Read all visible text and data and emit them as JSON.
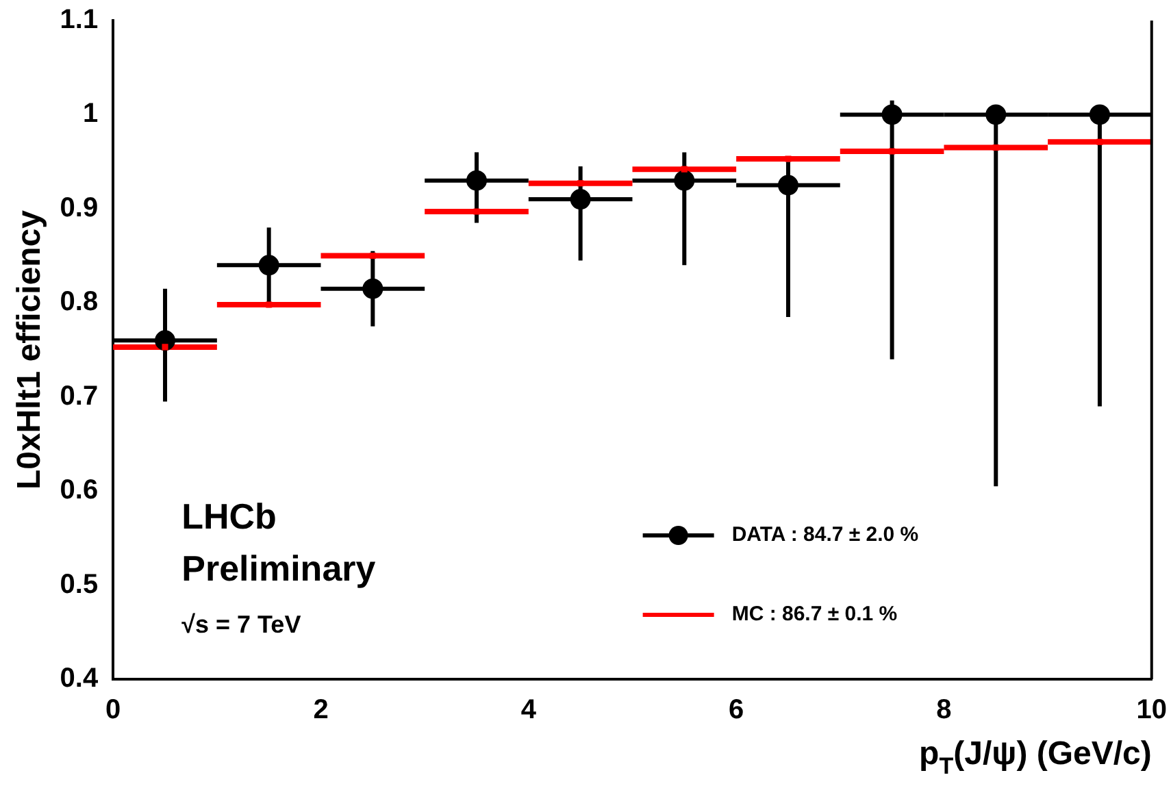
{
  "chart_data": {
    "type": "scatter",
    "xlabel": "p$_{T}$(J/ψ) (GeV/c)",
    "ylabel": "L0xHlt1 efficiency",
    "annotations": [
      "LHCb",
      "Preliminary",
      "√s = 7 TeV"
    ],
    "x": [
      0.5,
      1.5,
      2.5,
      3.5,
      4.5,
      5.5,
      6.5,
      7.5,
      8.5,
      9.5
    ],
    "xlim": [
      0,
      10
    ],
    "xticks": [
      0,
      2,
      4,
      6,
      8,
      10
    ],
    "ylim": [
      0.4,
      1.1
    ],
    "yticks": [
      0.4,
      0.5,
      0.6,
      0.7,
      0.8,
      0.9,
      1,
      1.1
    ],
    "grid": false,
    "legend": "bottom right",
    "series": [
      {
        "name": "DATA : 84.7 ± 2.0 %",
        "color": "#000000",
        "marker": "circle",
        "values": [
          0.76,
          0.84,
          0.815,
          0.93,
          0.91,
          0.93,
          0.925,
          1.0,
          1.0,
          1.0
        ],
        "errors": [
          [
            0.695,
            0.815
          ],
          [
            0.795,
            0.88
          ],
          [
            0.775,
            0.855
          ],
          [
            0.885,
            0.96
          ],
          [
            0.845,
            0.945
          ],
          [
            0.84,
            0.96
          ],
          [
            0.785,
            0.95
          ],
          [
            0.74,
            1.015
          ],
          [
            0.605,
            1.0
          ],
          [
            0.69,
            1.0
          ]
        ],
        "xerrors": [
          0.5,
          0.5,
          0.5,
          0.5,
          0.5,
          0.5,
          0.5,
          0.5,
          0.5,
          0.5
        ]
      },
      {
        "name": "MC : 86.7 ± 0.1 %",
        "color": "#ff0000",
        "marker": "square",
        "values": [
          0.753,
          0.798,
          0.85,
          0.897,
          0.927,
          0.942,
          0.953,
          0.961,
          0.965,
          0.971
        ],
        "xerrors": [
          0.5,
          0.5,
          0.5,
          0.5,
          0.5,
          0.5,
          0.5,
          0.5,
          0.5,
          0.5
        ]
      }
    ]
  }
}
